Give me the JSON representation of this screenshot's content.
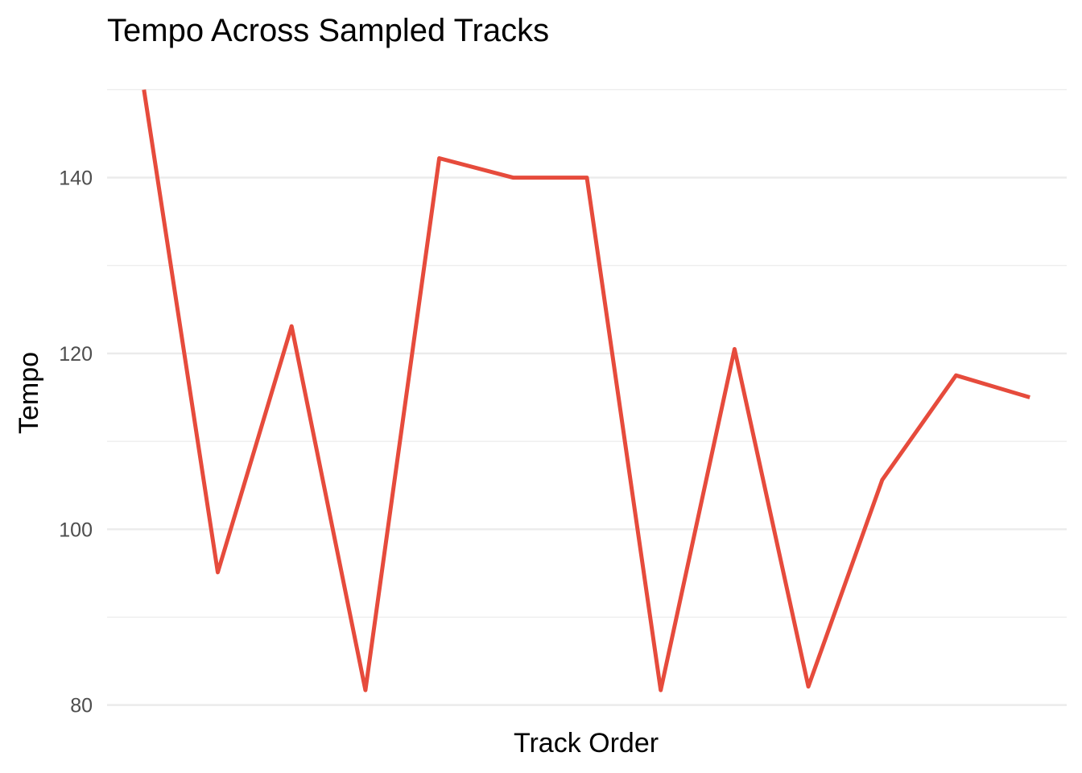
{
  "chart_data": {
    "type": "line",
    "title": "Tempo Across Sampled Tracks",
    "xlabel": "Track Order",
    "ylabel": "Tempo",
    "x": [
      1,
      2,
      3,
      4,
      5,
      6,
      7,
      8,
      9,
      10,
      11,
      12,
      13
    ],
    "series": [
      {
        "values": [
          150,
          95.1,
          123.1,
          81.7,
          142.2,
          140.0,
          140.0,
          81.7,
          120.5,
          82.1,
          105.6,
          117.5,
          115.0
        ],
        "color": "#e64b3c"
      }
    ],
    "ylim": [
      78.5,
      151.5
    ],
    "yticks": [
      80,
      100,
      120,
      140
    ],
    "x_tick_labels_shown": false,
    "grid": true,
    "legend": "none",
    "background": "#ffffff",
    "grid_color": "#ebebeb"
  }
}
